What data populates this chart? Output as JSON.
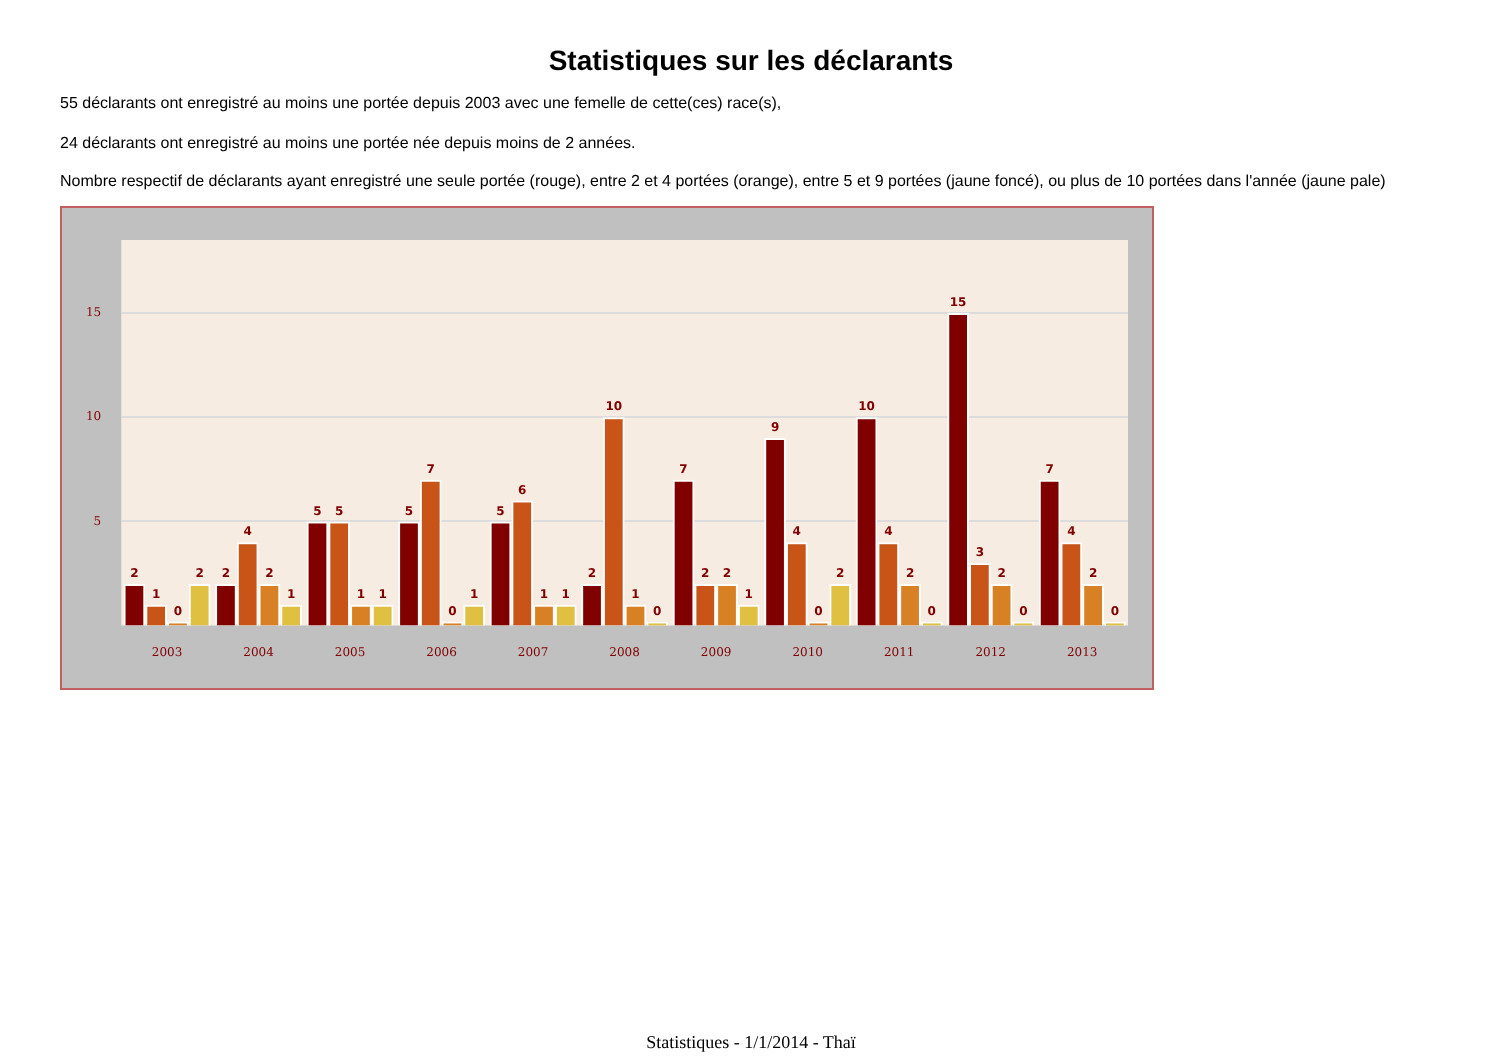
{
  "chart_data": {
    "type": "bar",
    "title": "Statistiques sur les déclarants",
    "annotations": [
      "55 déclarants ont enregistré au moins une portée depuis 2003 avec une femelle de cette(ces) race(s),",
      "24 déclarants ont enregistré au moins une portée née depuis moins de 2 années.",
      "Nombre respectif de déclarants ayant enregistré une seule portée (rouge), entre 2 et 4 portées (orange), entre 5 et 9 portées (jaune foncé), ou plus de 10 portées dans l'année (jaune pale)",
      "Statistiques - 1/1/2014 - Thaï"
    ],
    "categories": [
      "2003",
      "2004",
      "2005",
      "2006",
      "2007",
      "2008",
      "2009",
      "2010",
      "2011",
      "2012",
      "2013"
    ],
    "series": [
      {
        "color": "#800000",
        "values": [
          2,
          2,
          5,
          5,
          5,
          2,
          7,
          9,
          10,
          15,
          7
        ]
      },
      {
        "color": "#c85418",
        "values": [
          1,
          4,
          5,
          7,
          6,
          10,
          2,
          4,
          4,
          3,
          4
        ]
      },
      {
        "color": "#d88024",
        "values": [
          0,
          2,
          1,
          0,
          1,
          1,
          2,
          0,
          2,
          2,
          2
        ]
      },
      {
        "color": "#e0c040",
        "values": [
          2,
          1,
          1,
          1,
          1,
          0,
          1,
          2,
          0,
          0,
          0
        ]
      }
    ],
    "ylim": [
      0,
      18.5
    ],
    "yticks": [
      5,
      10,
      15
    ],
    "grid": "y",
    "data_labels": true,
    "legend": false
  }
}
